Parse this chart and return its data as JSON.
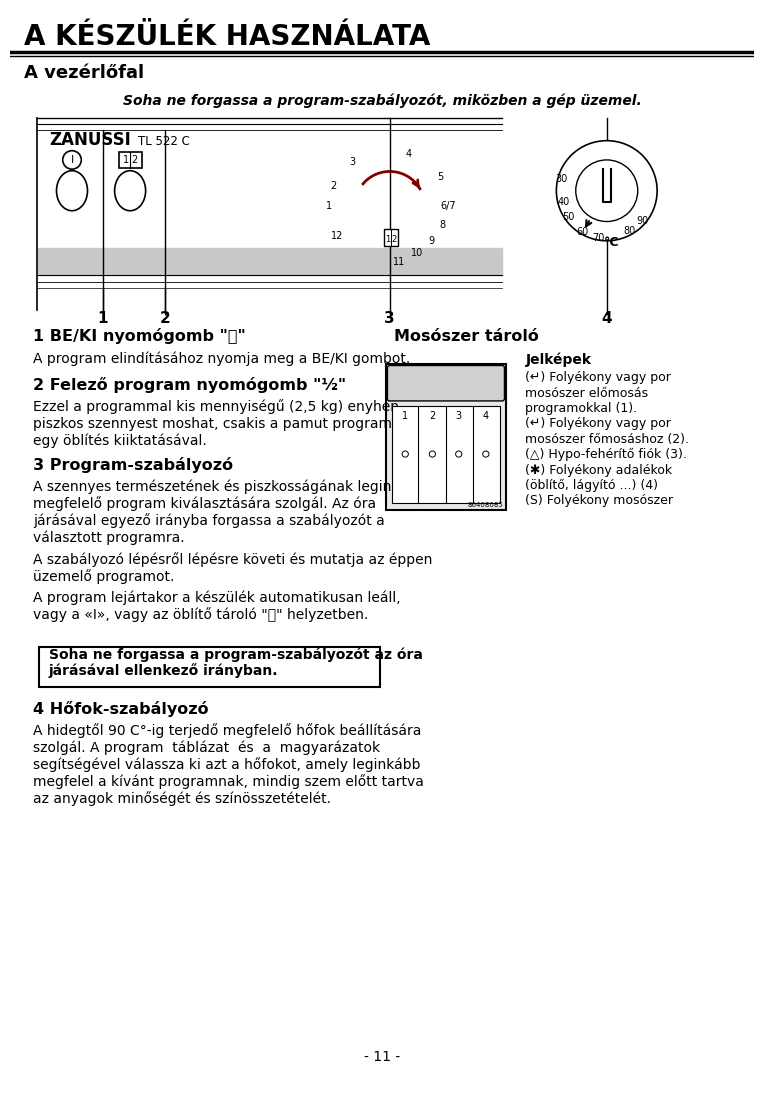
{
  "bg_color": "#ffffff",
  "page_width": 9.6,
  "page_height": 13.99,
  "title": "A KÉSZÜLÉK HASZNÁLATA",
  "subtitle": "A vezérlőfal",
  "subtitle2": "Soha ne forgassa a program-szabályozót, miközben a gép üzemel.",
  "section1_heading": "1 BE/KI nyomógomb \"Ⓢ\"",
  "section1_text": "A program elindításához nyomja meg a BE/KI gombot.",
  "section2_heading": "2 Felező program nyomógomb \"½\"",
  "section2_line1": "Ezzel a programmal kis mennyiségű (2,5 kg) enyhén",
  "section2_line2": "piszkos szennyest moshat, csakis a pamut programokon,",
  "section2_line3": "egy öblítés kiiktatásával.",
  "section3_heading": "3 Program-szabályozó",
  "section3_line1": "A szennyes természetének és piszkosságának leginkább",
  "section3_line2": "megfelelő program kiválasztására szolgál. Az óra",
  "section3_line3": "járásával egyező irányba forgassa a szabályozót a",
  "section3_line4": "választott programra.",
  "section3_line5": "A szabályozó lépésről lépésre követi és mutatja az éppen",
  "section3_line6": "üzemelő programot.",
  "section3_line7": "A program lejártakor a készülék automatikusan leáll,",
  "section3_line8": "vagy a «I», vagy az öblítő tároló \"⎕\" helyzetben.",
  "section3_warning1": "Soha ne forgassa a program-szabályozót az óra",
  "section3_warning2": "járásával ellenkező irányban.",
  "section4_heading": "4 Hőfok-szabályozó",
  "section4_line1": "A hidegtől 90 C°-ig terjedő megfelelő hőfok beállítására",
  "section4_line2": "szolgál. A program  táblázat  és  a  magyarázatok",
  "section4_line3": "segítségével válassza ki azt a hőfokot, amely leginkább",
  "section4_line4": "megfelel a kívánt programnak, mindig szem előtt tartva",
  "section4_line5": "az anyagok minőségét és színösszetételét.",
  "right_heading": "Mosószer tároló",
  "jelkepek_heading": "Jelképek",
  "jel_line1": "(↵) Folyékony vagy por",
  "jel_line2": "mosószer előmosás",
  "jel_line3": "programokkal (1).",
  "jel_line4": "(↵) Folyékony vagy por",
  "jel_line5": "mosószer főmosáshoz (2).",
  "jel_line6": "(△) Hypo-fehérítő fiók (3).",
  "jel_line7": "(✱) Folyékony adalékok",
  "jel_line8": "(öblítő, lágyító ...) (4)",
  "jel_line9": "(S) Folyékony mosószer",
  "page_number": "- 11 -",
  "label1": "1",
  "label2": "2",
  "label3": "3",
  "label4": "4"
}
